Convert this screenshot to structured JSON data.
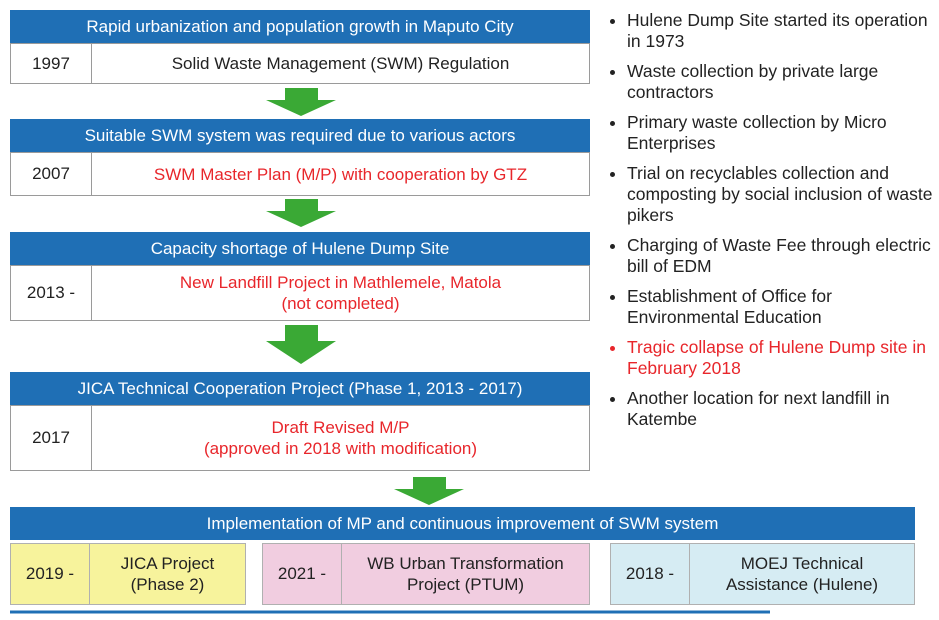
{
  "stages": [
    {
      "title": "Rapid urbanization and population growth in Maputo City",
      "year": "1997",
      "text": [
        "Solid Waste Management (SWM) Regulation"
      ]
    },
    {
      "title": "Suitable SWM system was required due to various actors",
      "year": "2007",
      "text": [
        "SWM Master Plan (M/P) with cooperation by GTZ"
      ]
    },
    {
      "title": "Capacity shortage of Hulene Dump Site",
      "year": "2013 -",
      "text": [
        "New Landfill Project in Mathlemele, Matola",
        "(not completed)"
      ]
    },
    {
      "title": "JICA Technical Cooperation Project (Phase 1, 2013 - 2017)",
      "year": "2017",
      "text": [
        "Draft Revised M/P",
        "(approved in 2018 with modification)"
      ]
    }
  ],
  "bullets": [
    "Hulene Dump Site started its operation in 1973",
    "Waste collection by private large contractors",
    "Primary waste collection by Micro Enterprises",
    "Trial on recyclables collection and composting by social inclusion of waste pikers",
    "Charging of Waste Fee through electric bill of EDM",
    "Establishment of Office for Environmental Education",
    "Tragic collapse of Hulene Dump site in February 2018",
    "Another location for next landfill in Katembe"
  ],
  "implementation": {
    "title": "Implementation of MP and continuous improvement of SWM system",
    "projects": [
      {
        "year": "2019 -",
        "text": [
          "JICA Project",
          "(Phase 2)"
        ]
      },
      {
        "year": "2021 -",
        "text": [
          "WB Urban Transformation",
          "Project (PTUM)"
        ]
      },
      {
        "year": "2018 -",
        "text": [
          "MOEJ Technical",
          "Assistance (Hulene)"
        ]
      }
    ]
  }
}
